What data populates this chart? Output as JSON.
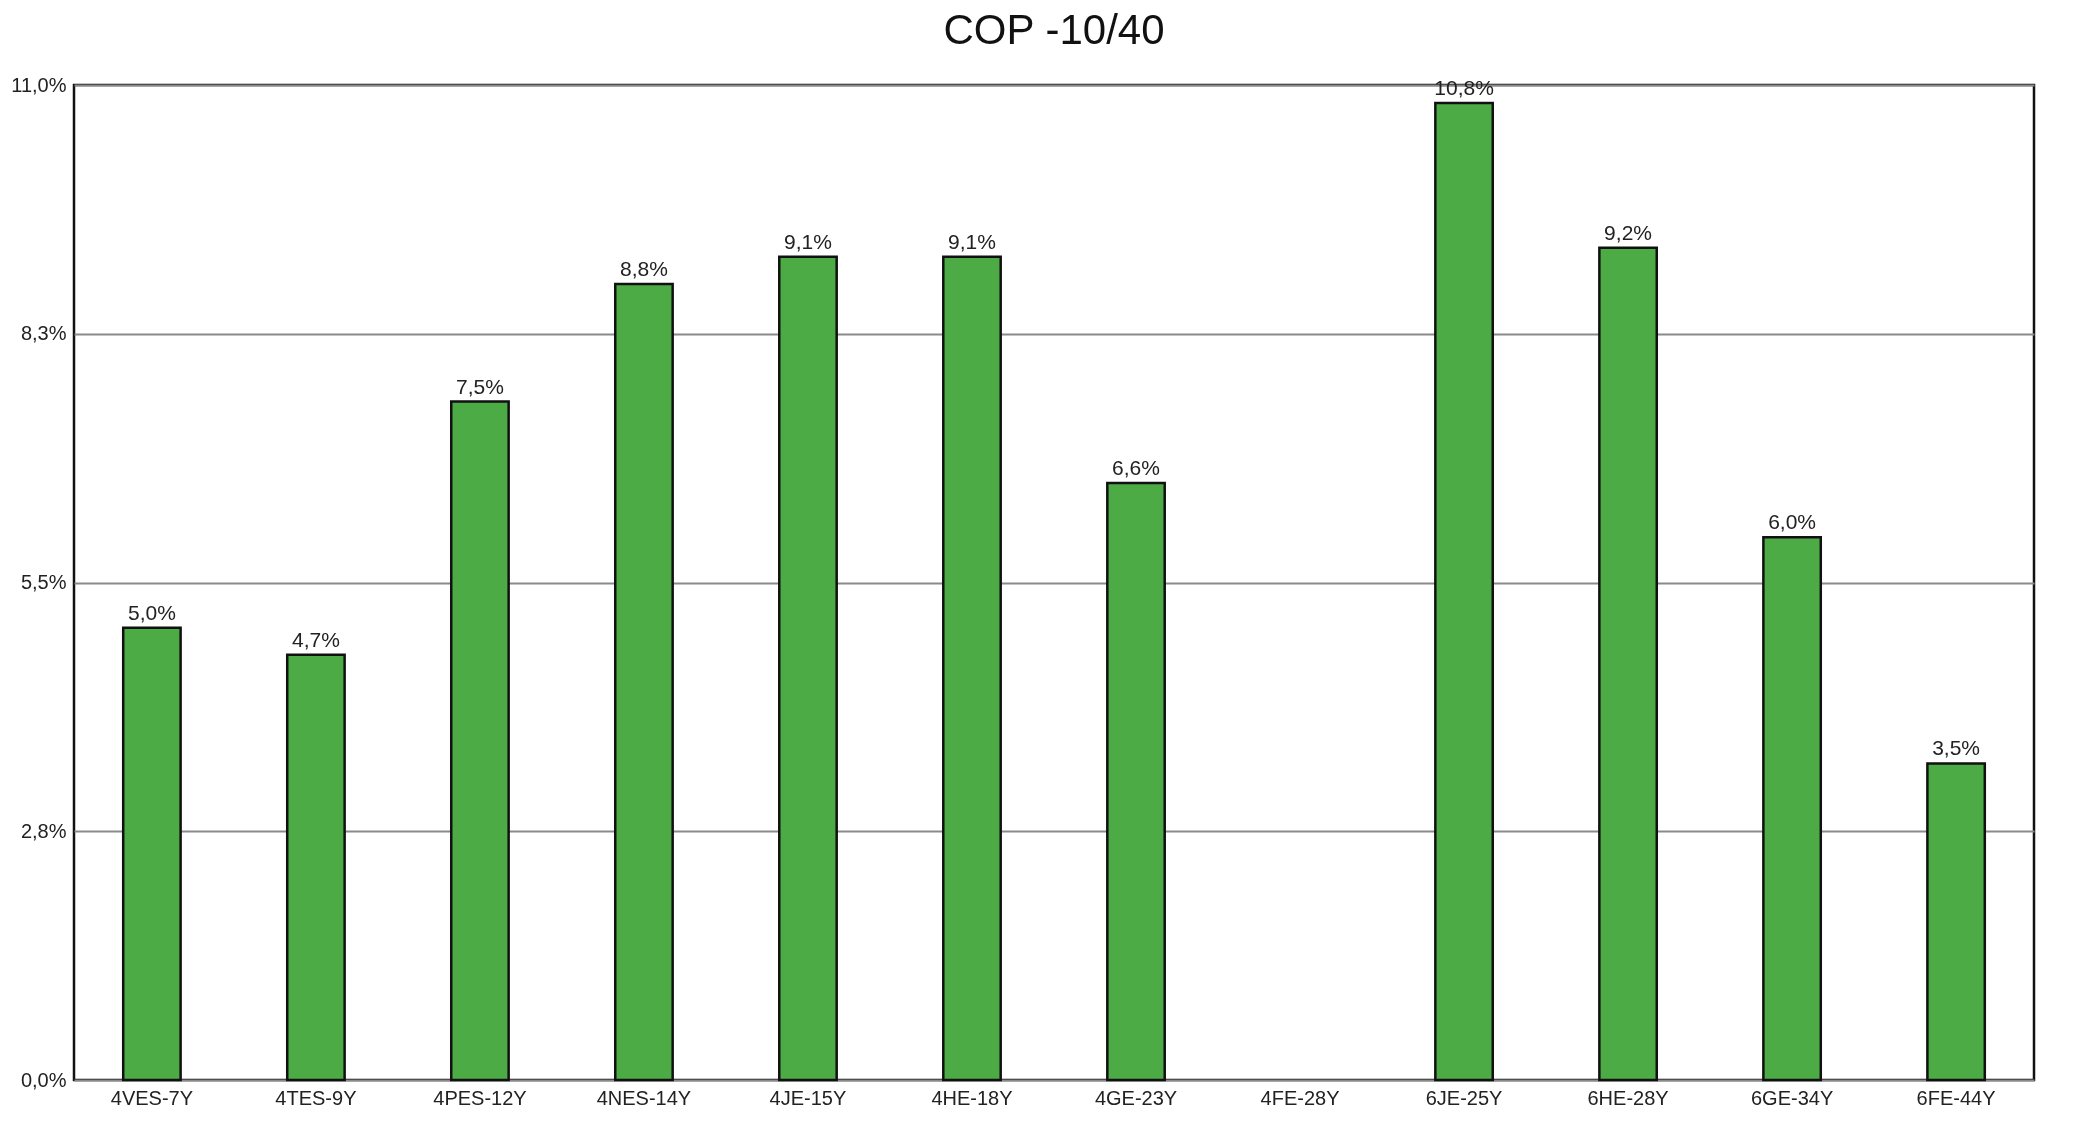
{
  "chart_data": {
    "type": "bar",
    "title": "COP -10/40",
    "categories": [
      "4VES-7Y",
      "4TES-9Y",
      "4PES-12Y",
      "4NES-14Y",
      "4JE-15Y",
      "4HE-18Y",
      "4GE-23Y",
      "4FE-28Y",
      "6JE-25Y",
      "6HE-28Y",
      "6GE-34Y",
      "6FE-44Y"
    ],
    "values": [
      5.0,
      4.7,
      7.5,
      8.8,
      9.1,
      9.1,
      6.6,
      null,
      10.8,
      9.2,
      6.0,
      3.5
    ],
    "value_labels": [
      "5,0%",
      "4,7%",
      "7,5%",
      "8,8%",
      "9,1%",
      "9,1%",
      "6,6%",
      null,
      "10,8%",
      "9,2%",
      "6,0%",
      "3,5%"
    ],
    "color": "#4dab46",
    "ylim": [
      0,
      11.0
    ],
    "yticks": [
      {
        "value": 0,
        "label": "0,0%"
      },
      {
        "value": 2.75,
        "label": "2,8%"
      },
      {
        "value": 5.5,
        "label": "5,5%"
      },
      {
        "value": 8.25,
        "label": "8,3%"
      },
      {
        "value": 11.0,
        "label": "11,0%"
      }
    ],
    "grid": "y"
  }
}
